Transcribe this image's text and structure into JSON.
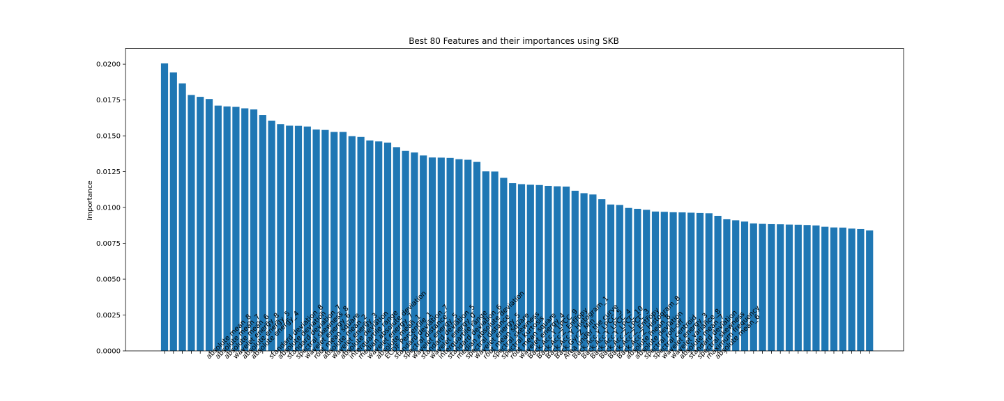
{
  "chart_data": {
    "type": "bar",
    "title": "Best 80 Features and their importances using SKB",
    "xlabel": "",
    "ylabel": "Importance",
    "ylim": [
      0,
      0.0211
    ],
    "yticks": [
      "0.0000",
      "0.0025",
      "0.0050",
      "0.0075",
      "0.0100",
      "0.0125",
      "0.0150",
      "0.0175",
      "0.0200"
    ],
    "ytick_values": [
      0,
      0.0025,
      0.005,
      0.0075,
      0.01,
      0.0125,
      0.015,
      0.0175,
      0.02
    ],
    "bar_color": "#1f77b4",
    "grid": false,
    "categories": [
      "",
      "",
      "",
      "",
      "",
      "absolute mean_8",
      "absolute mean_7",
      "absolute mean_6",
      "wavelet energy_8",
      "absolute energy_5",
      "absolute energy_4",
      "",
      "standard deviation_8",
      "absolute deviation",
      "standard deviation_7",
      "spectral skewness_8",
      "wavelet energy_6",
      "root mean square",
      "absolute mean_2",
      "wavelet energy_3",
      "absolute deviation",
      "interquartile range",
      "median absolute deviation",
      "wavelet energy_7",
      "absolute mean_1",
      "ECDF Percentile_1",
      "standard deviation_7",
      "spectral distance",
      "wavelet energy_5",
      "standard deviation_5",
      "wavelet energy_0",
      "interquartile range",
      "standard deviation_6",
      "median absolute deviation",
      "spectral distance",
      "wavelet energy_5",
      "root mean square",
      "spectral skewness",
      "spectral kurtosis",
      "root mean square",
      "wavelet energy_4",
      "Back.Acc.Y_LPCC_9",
      "Back.Acc.Z_Entropy",
      "Back.Acc.Y_Histogram_1",
      "Back.Gyr.Z_Min",
      "Area under the curve",
      "Back.Acc.Y_LPCC_5",
      "Back.Acc.Y_LPCC_4",
      "Back.Acc.Y_LPCC_10",
      "Back.Acc.Z_LPCC_3",
      "Back.Acc.Z_Entropy",
      "Back.Acc.Z_Histogram_8",
      "absolute mean_8",
      "absolute deviation",
      "spectral roll-off",
      "spectral centroid",
      "wavelet energy_3",
      "wavelet variance_8",
      "absolute mean_7",
      "standard deviation",
      "spectral skewness",
      "maximum frequency",
      "absolute mean_6",
      "",
      "",
      "",
      "",
      "",
      "",
      "",
      "",
      "",
      "",
      "",
      "",
      "",
      "",
      "",
      "",
      ""
    ],
    "values": [
      0.02005,
      0.01942,
      0.01866,
      0.01785,
      0.01772,
      0.01757,
      0.01711,
      0.01705,
      0.01702,
      0.01692,
      0.01684,
      0.01646,
      0.01605,
      0.01582,
      0.01571,
      0.0157,
      0.01565,
      0.01544,
      0.01541,
      0.01527,
      0.01527,
      0.01498,
      0.01492,
      0.01468,
      0.01461,
      0.01453,
      0.01421,
      0.01395,
      0.01384,
      0.01363,
      0.01349,
      0.01348,
      0.01346,
      0.01337,
      0.01333,
      0.01318,
      0.01252,
      0.01251,
      0.01207,
      0.0117,
      0.01163,
      0.01159,
      0.01157,
      0.01151,
      0.01148,
      0.01146,
      0.01117,
      0.011,
      0.01091,
      0.01058,
      0.01021,
      0.01018,
      0.00997,
      0.00991,
      0.00984,
      0.00972,
      0.0097,
      0.00967,
      0.00966,
      0.00964,
      0.00962,
      0.0096,
      0.00942,
      0.00918,
      0.00911,
      0.00902,
      0.00889,
      0.00886,
      0.00884,
      0.00883,
      0.00881,
      0.0088,
      0.00878,
      0.00875,
      0.00866,
      0.00861,
      0.0086,
      0.00853,
      0.0085,
      0.0084
    ]
  }
}
